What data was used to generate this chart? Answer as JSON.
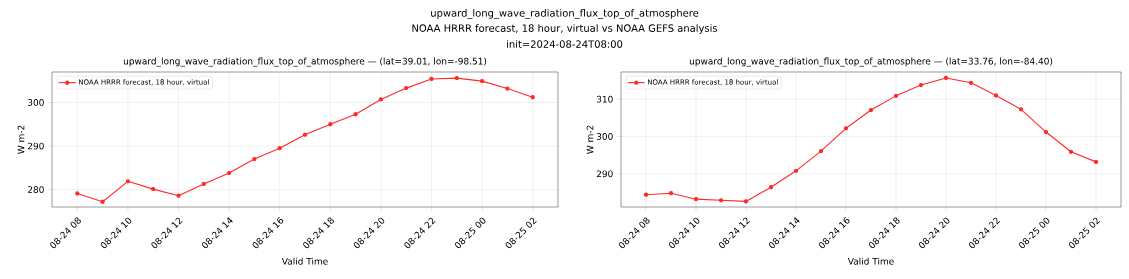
{
  "chart_data": [
    {
      "type": "line",
      "title": "upward_long_wave_radiation_flux_top_of_atmosphere — (lat=39.01, lon=-98.51)",
      "annotations": [
        "upward_long_wave_radiation_flux_top_of_atmosphere",
        "NOAA HRRR forecast, 18 hour, virtual vs NOAA GEFS analysis",
        "init=2024-08-24T08:00"
      ],
      "xlabel": "Valid Time",
      "ylabel": "W m-2",
      "x": [
        "2024-08-24T08:00",
        "2024-08-24T09:00",
        "2024-08-24T10:00",
        "2024-08-24T11:00",
        "2024-08-24T12:00",
        "2024-08-24T13:00",
        "2024-08-24T14:00",
        "2024-08-24T15:00",
        "2024-08-24T16:00",
        "2024-08-24T17:00",
        "2024-08-24T18:00",
        "2024-08-24T19:00",
        "2024-08-24T20:00",
        "2024-08-24T21:00",
        "2024-08-24T22:00",
        "2024-08-24T23:00",
        "2024-08-25T00:00",
        "2024-08-25T01:00",
        "2024-08-25T02:00"
      ],
      "series": [
        {
          "name": "NOAA HRRR forecast, 18 hour, virtual",
          "color": "#ff2a2a",
          "values": [
            279.1,
            277.2,
            281.9,
            280.1,
            278.6,
            281.3,
            283.8,
            287.0,
            289.5,
            292.6,
            295.0,
            297.3,
            300.7,
            303.3,
            305.4,
            305.6,
            304.9,
            303.2,
            301.2
          ]
        }
      ],
      "xlim": [
        "2024-08-24T07:06",
        "2024-08-25T02:54"
      ],
      "xticks": [
        {
          "value": "2024-08-24T08:00",
          "label": "08-24 08"
        },
        {
          "value": "2024-08-24T10:00",
          "label": "08-24 10"
        },
        {
          "value": "2024-08-24T12:00",
          "label": "08-24 12"
        },
        {
          "value": "2024-08-24T14:00",
          "label": "08-24 14"
        },
        {
          "value": "2024-08-24T16:00",
          "label": "08-24 16"
        },
        {
          "value": "2024-08-24T18:00",
          "label": "08-24 18"
        },
        {
          "value": "2024-08-24T20:00",
          "label": "08-24 20"
        },
        {
          "value": "2024-08-24T22:00",
          "label": "08-24 22"
        },
        {
          "value": "2024-08-25T00:00",
          "label": "08-25 00"
        },
        {
          "value": "2024-08-25T02:00",
          "label": "08-25 02"
        }
      ],
      "ylim": [
        276.0,
        307.0
      ],
      "yticks": [
        280,
        290,
        300
      ],
      "grid": true,
      "legend": "top left",
      "marker": "circle",
      "line_style": "solid"
    },
    {
      "type": "line",
      "title": "upward_long_wave_radiation_flux_top_of_atmosphere — (lat=33.76, lon=-84.40)",
      "xlabel": "Valid Time",
      "ylabel": "W m-2",
      "x": [
        "2024-08-24T08:00",
        "2024-08-24T09:00",
        "2024-08-24T10:00",
        "2024-08-24T11:00",
        "2024-08-24T12:00",
        "2024-08-24T13:00",
        "2024-08-24T14:00",
        "2024-08-24T15:00",
        "2024-08-24T16:00",
        "2024-08-24T17:00",
        "2024-08-24T18:00",
        "2024-08-24T19:00",
        "2024-08-24T20:00",
        "2024-08-24T21:00",
        "2024-08-24T22:00",
        "2024-08-24T23:00",
        "2024-08-25T00:00",
        "2024-08-25T01:00",
        "2024-08-25T02:00"
      ],
      "series": [
        {
          "name": "NOAA HRRR forecast, 18 hour, virtual",
          "color": "#ff2a2a",
          "values": [
            284.4,
            284.8,
            283.2,
            282.9,
            282.6,
            286.4,
            290.8,
            296.1,
            302.2,
            307.1,
            310.9,
            313.8,
            315.7,
            314.4,
            311.0,
            307.3,
            301.2,
            295.9,
            293.2
          ]
        }
      ],
      "xlim": [
        "2024-08-24T07:06",
        "2024-08-25T02:54"
      ],
      "xticks": [
        {
          "value": "2024-08-24T08:00",
          "label": "08-24 08"
        },
        {
          "value": "2024-08-24T10:00",
          "label": "08-24 10"
        },
        {
          "value": "2024-08-24T12:00",
          "label": "08-24 12"
        },
        {
          "value": "2024-08-24T14:00",
          "label": "08-24 14"
        },
        {
          "value": "2024-08-24T16:00",
          "label": "08-24 16"
        },
        {
          "value": "2024-08-24T18:00",
          "label": "08-24 18"
        },
        {
          "value": "2024-08-24T20:00",
          "label": "08-24 20"
        },
        {
          "value": "2024-08-24T22:00",
          "label": "08-24 22"
        },
        {
          "value": "2024-08-25T00:00",
          "label": "08-25 00"
        },
        {
          "value": "2024-08-25T02:00",
          "label": "08-25 02"
        }
      ],
      "ylim": [
        281.1,
        317.3
      ],
      "yticks": [
        290,
        300,
        310
      ],
      "grid": true,
      "legend": "top left",
      "marker": "circle",
      "line_style": "solid"
    }
  ]
}
